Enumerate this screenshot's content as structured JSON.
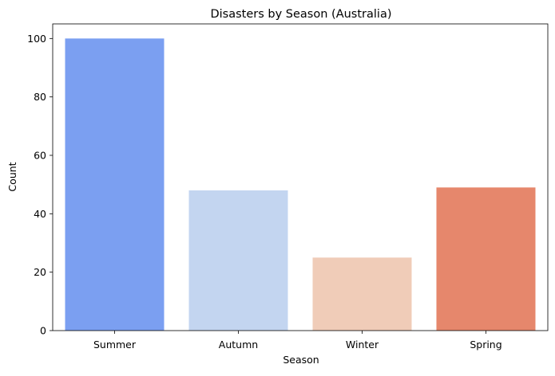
{
  "chart_data": {
    "type": "bar",
    "title": "Disasters by Season (Australia)",
    "xlabel": "Season",
    "ylabel": "Count",
    "categories": [
      "Summer",
      "Autumn",
      "Winter",
      "Spring"
    ],
    "values": [
      100,
      48,
      25,
      49
    ],
    "colors": [
      "#7b9ff1",
      "#c3d5f0",
      "#f0ccb8",
      "#e6876c"
    ],
    "ylim": [
      0,
      105
    ],
    "yticks": [
      0,
      20,
      40,
      60,
      80,
      100
    ],
    "grid": false,
    "legend": "none"
  }
}
